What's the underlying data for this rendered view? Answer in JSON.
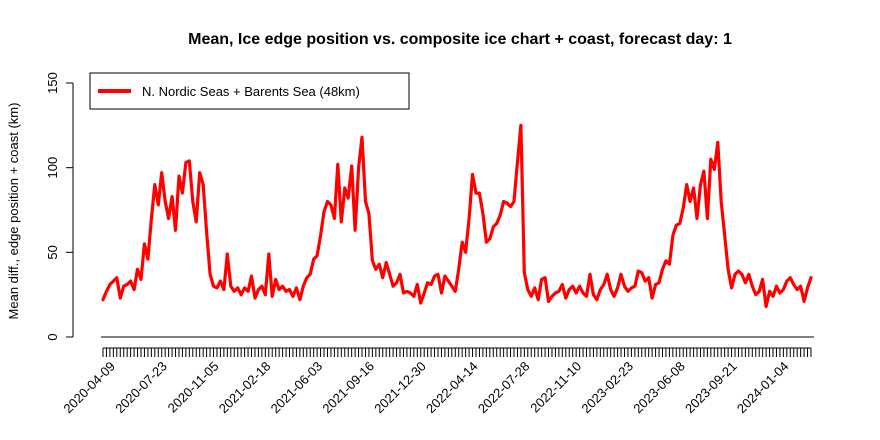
{
  "chart_data": {
    "type": "line",
    "title": "Mean, Ice edge position vs. composite ice chart + coast, forecast day: 1",
    "xlabel": "",
    "ylabel": "Mean diff., edge position + coast (km)",
    "ylim": [
      0,
      150
    ],
    "yticks": [
      "0",
      "50",
      "100",
      "150"
    ],
    "xticks": [
      "2020-04-09",
      "2020-07-23",
      "2020-11-05",
      "2021-02-18",
      "2021-06-03",
      "2021-09-16",
      "2021-12-30",
      "2022-04-14",
      "2022-07-28",
      "2022-11-10",
      "2023-02-23",
      "2023-06-08",
      "2023-09-21",
      "2024-01-04"
    ],
    "reference_line": 0,
    "grid": false,
    "legend_position": "top-left",
    "series": [
      {
        "name": "N. Nordic Seas + Barents Sea (48km)",
        "color": "#ff0000",
        "points": [
          [
            "2020-03-26",
            22
          ],
          [
            "2020-04-02",
            27
          ],
          [
            "2020-04-09",
            31
          ],
          [
            "2020-04-16",
            33
          ],
          [
            "2020-04-23",
            35
          ],
          [
            "2020-04-30",
            23
          ],
          [
            "2020-05-07",
            30
          ],
          [
            "2020-05-14",
            31
          ],
          [
            "2020-05-21",
            33
          ],
          [
            "2020-05-28",
            28
          ],
          [
            "2020-06-04",
            40
          ],
          [
            "2020-06-11",
            34
          ],
          [
            "2020-06-18",
            55
          ],
          [
            "2020-06-25",
            46
          ],
          [
            "2020-07-02",
            70
          ],
          [
            "2020-07-09",
            90
          ],
          [
            "2020-07-16",
            78
          ],
          [
            "2020-07-23",
            97
          ],
          [
            "2020-07-30",
            80
          ],
          [
            "2020-08-06",
            70
          ],
          [
            "2020-08-13",
            83
          ],
          [
            "2020-08-20",
            63
          ],
          [
            "2020-08-27",
            95
          ],
          [
            "2020-09-03",
            85
          ],
          [
            "2020-09-10",
            103
          ],
          [
            "2020-09-17",
            104
          ],
          [
            "2020-09-24",
            80
          ],
          [
            "2020-10-01",
            68
          ],
          [
            "2020-10-08",
            97
          ],
          [
            "2020-10-15",
            90
          ],
          [
            "2020-10-22",
            62
          ],
          [
            "2020-10-29",
            37
          ],
          [
            "2020-11-05",
            30
          ],
          [
            "2020-11-12",
            29
          ],
          [
            "2020-11-19",
            33
          ],
          [
            "2020-11-26",
            28
          ],
          [
            "2020-12-03",
            49
          ],
          [
            "2020-12-10",
            30
          ],
          [
            "2020-12-17",
            27
          ],
          [
            "2020-12-24",
            29
          ],
          [
            "2020-12-31",
            25
          ],
          [
            "2021-01-07",
            29
          ],
          [
            "2021-01-14",
            27
          ],
          [
            "2021-01-21",
            36
          ],
          [
            "2021-01-28",
            23
          ],
          [
            "2021-02-04",
            28
          ],
          [
            "2021-02-11",
            30
          ],
          [
            "2021-02-18",
            25
          ],
          [
            "2021-02-25",
            49
          ],
          [
            "2021-03-04",
            24
          ],
          [
            "2021-03-11",
            34
          ],
          [
            "2021-03-18",
            28
          ],
          [
            "2021-03-25",
            30
          ],
          [
            "2021-04-01",
            27
          ],
          [
            "2021-04-08",
            28
          ],
          [
            "2021-04-15",
            24
          ],
          [
            "2021-04-22",
            29
          ],
          [
            "2021-04-29",
            22
          ],
          [
            "2021-05-06",
            30
          ],
          [
            "2021-05-13",
            35
          ],
          [
            "2021-05-20",
            37
          ],
          [
            "2021-05-27",
            46
          ],
          [
            "2021-06-03",
            48
          ],
          [
            "2021-06-10",
            60
          ],
          [
            "2021-06-17",
            74
          ],
          [
            "2021-06-24",
            80
          ],
          [
            "2021-07-01",
            78
          ],
          [
            "2021-07-08",
            70
          ],
          [
            "2021-07-15",
            102
          ],
          [
            "2021-07-22",
            68
          ],
          [
            "2021-07-29",
            88
          ],
          [
            "2021-08-05",
            82
          ],
          [
            "2021-08-12",
            101
          ],
          [
            "2021-08-19",
            63
          ],
          [
            "2021-08-26",
            100
          ],
          [
            "2021-09-02",
            118
          ],
          [
            "2021-09-09",
            80
          ],
          [
            "2021-09-16",
            73
          ],
          [
            "2021-09-23",
            45
          ],
          [
            "2021-09-30",
            40
          ],
          [
            "2021-10-07",
            43
          ],
          [
            "2021-10-14",
            35
          ],
          [
            "2021-10-21",
            44
          ],
          [
            "2021-10-28",
            37
          ],
          [
            "2021-11-04",
            30
          ],
          [
            "2021-11-11",
            32
          ],
          [
            "2021-11-18",
            37
          ],
          [
            "2021-11-25",
            26
          ],
          [
            "2021-12-02",
            27
          ],
          [
            "2021-12-09",
            26
          ],
          [
            "2021-12-16",
            24
          ],
          [
            "2021-12-23",
            31
          ],
          [
            "2021-12-30",
            20
          ],
          [
            "2022-01-06",
            26
          ],
          [
            "2022-01-13",
            32
          ],
          [
            "2022-01-20",
            31
          ],
          [
            "2022-01-27",
            36
          ],
          [
            "2022-02-03",
            37
          ],
          [
            "2022-02-10",
            26
          ],
          [
            "2022-02-17",
            36
          ],
          [
            "2022-02-24",
            33
          ],
          [
            "2022-03-03",
            30
          ],
          [
            "2022-03-10",
            27
          ],
          [
            "2022-03-17",
            40
          ],
          [
            "2022-03-24",
            56
          ],
          [
            "2022-03-31",
            50
          ],
          [
            "2022-04-07",
            70
          ],
          [
            "2022-04-14",
            96
          ],
          [
            "2022-04-21",
            85
          ],
          [
            "2022-04-28",
            85
          ],
          [
            "2022-05-05",
            73
          ],
          [
            "2022-05-12",
            56
          ],
          [
            "2022-05-19",
            58
          ],
          [
            "2022-05-26",
            65
          ],
          [
            "2022-06-02",
            67
          ],
          [
            "2022-06-09",
            72
          ],
          [
            "2022-06-16",
            80
          ],
          [
            "2022-06-23",
            79
          ],
          [
            "2022-06-30",
            77
          ],
          [
            "2022-07-07",
            80
          ],
          [
            "2022-07-14",
            103
          ],
          [
            "2022-07-21",
            125
          ],
          [
            "2022-07-28",
            38
          ],
          [
            "2022-08-04",
            28
          ],
          [
            "2022-08-11",
            24
          ],
          [
            "2022-08-18",
            29
          ],
          [
            "2022-08-25",
            22
          ],
          [
            "2022-09-01",
            34
          ],
          [
            "2022-09-08",
            35
          ],
          [
            "2022-09-15",
            21
          ],
          [
            "2022-09-22",
            24
          ],
          [
            "2022-09-29",
            26
          ],
          [
            "2022-10-06",
            27
          ],
          [
            "2022-10-13",
            31
          ],
          [
            "2022-10-20",
            23
          ],
          [
            "2022-10-27",
            28
          ],
          [
            "2022-11-03",
            30
          ],
          [
            "2022-11-10",
            26
          ],
          [
            "2022-11-17",
            30
          ],
          [
            "2022-11-24",
            26
          ],
          [
            "2022-12-01",
            24
          ],
          [
            "2022-12-08",
            37
          ],
          [
            "2022-12-15",
            25
          ],
          [
            "2022-12-22",
            22
          ],
          [
            "2022-12-29",
            28
          ],
          [
            "2023-01-05",
            31
          ],
          [
            "2023-01-12",
            37
          ],
          [
            "2023-01-19",
            28
          ],
          [
            "2023-01-26",
            24
          ],
          [
            "2023-02-02",
            29
          ],
          [
            "2023-02-09",
            37
          ],
          [
            "2023-02-16",
            30
          ],
          [
            "2023-02-23",
            27
          ],
          [
            "2023-03-02",
            29
          ],
          [
            "2023-03-09",
            30
          ],
          [
            "2023-03-16",
            39
          ],
          [
            "2023-03-23",
            38
          ],
          [
            "2023-03-30",
            33
          ],
          [
            "2023-04-06",
            35
          ],
          [
            "2023-04-13",
            23
          ],
          [
            "2023-04-20",
            31
          ],
          [
            "2023-04-27",
            32
          ],
          [
            "2023-05-04",
            40
          ],
          [
            "2023-05-11",
            45
          ],
          [
            "2023-05-18",
            43
          ],
          [
            "2023-05-25",
            60
          ],
          [
            "2023-06-01",
            66
          ],
          [
            "2023-06-08",
            67
          ],
          [
            "2023-06-15",
            76
          ],
          [
            "2023-06-22",
            90
          ],
          [
            "2023-06-29",
            80
          ],
          [
            "2023-07-06",
            88
          ],
          [
            "2023-07-13",
            70
          ],
          [
            "2023-07-20",
            90
          ],
          [
            "2023-07-27",
            98
          ],
          [
            "2023-08-03",
            70
          ],
          [
            "2023-08-10",
            105
          ],
          [
            "2023-08-17",
            99
          ],
          [
            "2023-08-24",
            115
          ],
          [
            "2023-08-31",
            80
          ],
          [
            "2023-09-07",
            60
          ],
          [
            "2023-09-14",
            40
          ],
          [
            "2023-09-21",
            29
          ],
          [
            "2023-09-28",
            37
          ],
          [
            "2023-10-05",
            39
          ],
          [
            "2023-10-12",
            37
          ],
          [
            "2023-10-19",
            32
          ],
          [
            "2023-10-26",
            37
          ],
          [
            "2023-11-02",
            30
          ],
          [
            "2023-11-09",
            25
          ],
          [
            "2023-11-16",
            27
          ],
          [
            "2023-11-23",
            34
          ],
          [
            "2023-11-30",
            18
          ],
          [
            "2023-12-07",
            27
          ],
          [
            "2023-12-14",
            24
          ],
          [
            "2023-12-21",
            30
          ],
          [
            "2023-12-28",
            26
          ],
          [
            "2024-01-04",
            28
          ],
          [
            "2024-01-11",
            33
          ],
          [
            "2024-01-18",
            35
          ],
          [
            "2024-01-25",
            31
          ],
          [
            "2024-02-01",
            28
          ],
          [
            "2024-02-08",
            30
          ],
          [
            "2024-02-15",
            21
          ],
          [
            "2024-02-22",
            29
          ],
          [
            "2024-02-29",
            35
          ]
        ]
      }
    ]
  }
}
